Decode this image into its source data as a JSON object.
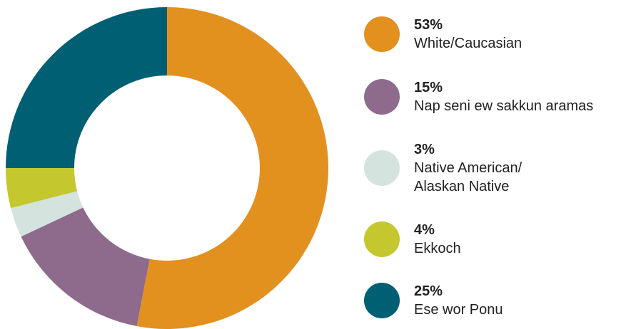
{
  "chart_data": {
    "type": "donut",
    "categories": [
      "White/Caucasian",
      "Nap seni ew sakkun aramas",
      "Native American/\nAlaskan Native",
      "Ekkoch",
      "Ese wor Ponu"
    ],
    "values": [
      53,
      15,
      3,
      4,
      25
    ],
    "value_labels": [
      "53%",
      "15%",
      "3%",
      "4%",
      "25%"
    ],
    "colors": [
      "#e2901e",
      "#8e6b8c",
      "#d4e3dd",
      "#c4c82e",
      "#005f73"
    ],
    "legend": "right"
  }
}
